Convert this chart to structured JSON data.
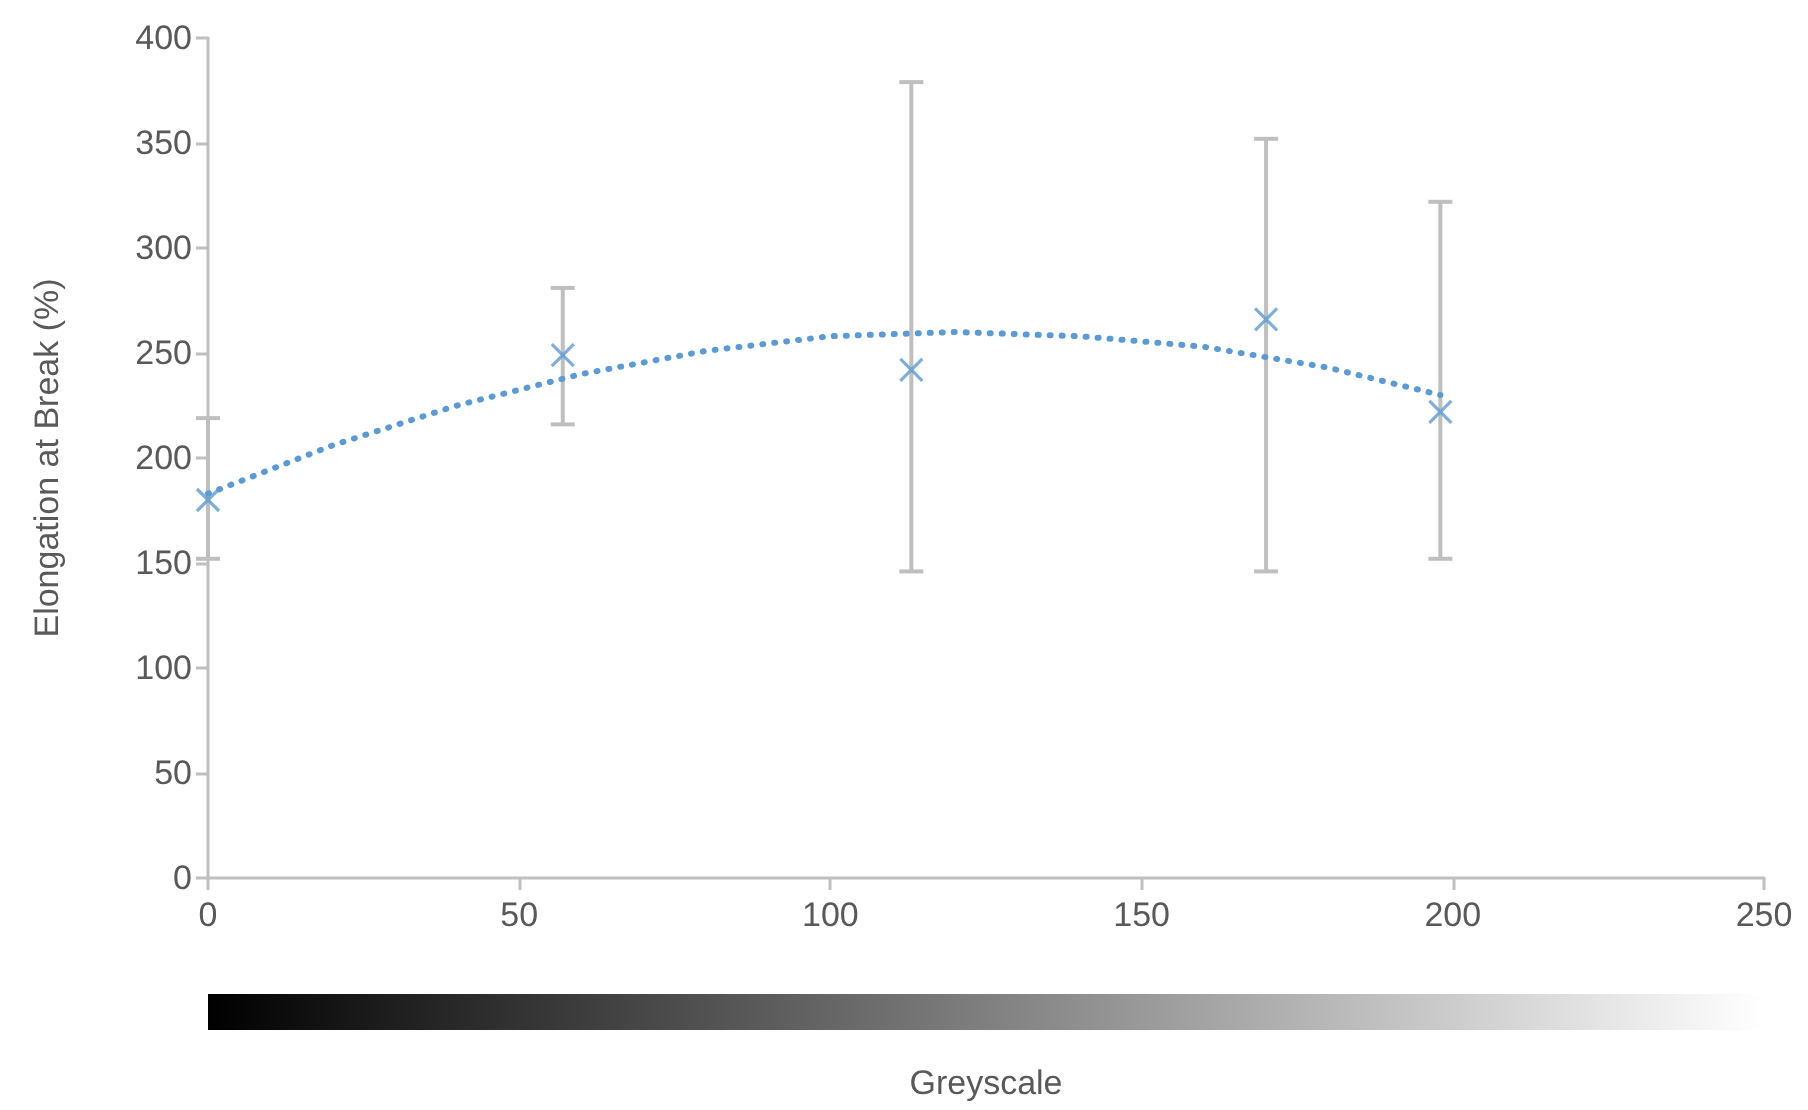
{
  "chart_data": {
    "type": "scatter",
    "xlabel": "Greyscale",
    "ylabel": "Elongation at Break (%)",
    "xlim": [
      0,
      250
    ],
    "xticks": [
      0,
      50,
      100,
      150,
      200,
      250
    ],
    "ylim": [
      0,
      400
    ],
    "yticks": [
      0,
      50,
      100,
      150,
      200,
      250,
      300,
      350,
      400
    ],
    "grid": false,
    "series": [
      {
        "color": "#5b9bd5",
        "marker": "cross",
        "x": [
          0,
          57,
          113,
          170,
          198
        ],
        "values": [
          180,
          249,
          242,
          266,
          222
        ],
        "errors": [
          [
            152,
            219
          ],
          [
            216,
            281
          ],
          [
            146,
            379
          ],
          [
            146,
            352
          ],
          [
            152,
            322
          ]
        ]
      },
      {
        "type": "line",
        "color": "#5b9bd5",
        "line_style": "dotted",
        "marker": "none",
        "x": [
          0,
          20,
          40,
          60,
          80,
          100,
          120,
          140,
          160,
          180,
          198
        ],
        "values": [
          183,
          206,
          225,
          240,
          251,
          258,
          260,
          258,
          253,
          243,
          230
        ]
      }
    ]
  }
}
